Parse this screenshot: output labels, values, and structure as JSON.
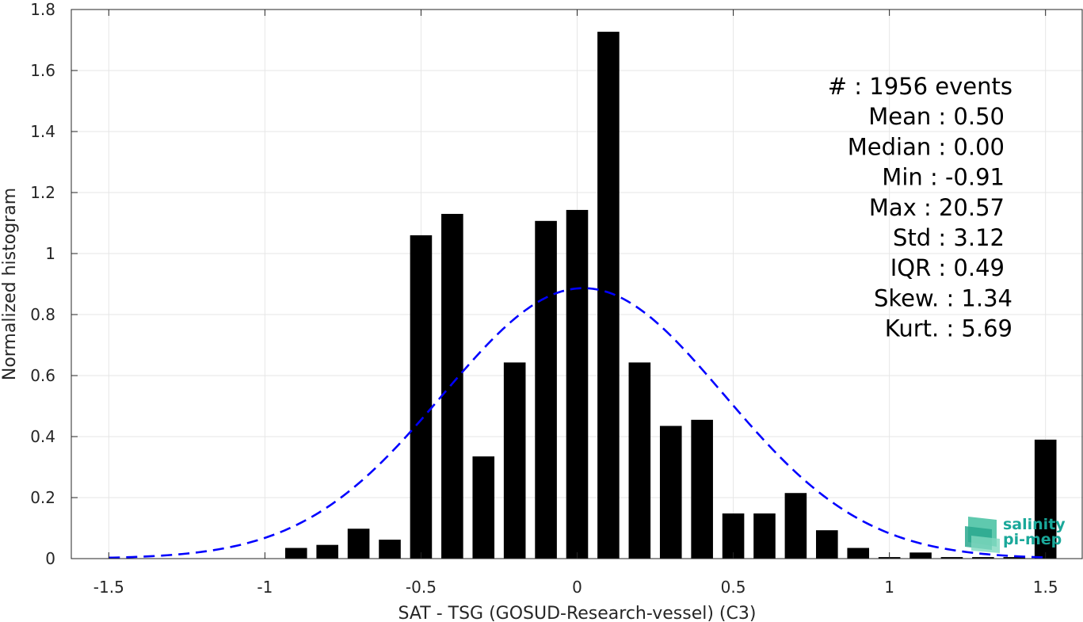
{
  "chart_data": {
    "type": "bar",
    "xlabel": "SAT - TSG (GOSUD-Research-vessel) (C3)",
    "ylabel": "Normalized histogram",
    "xlim": [
      -1.62,
      1.62
    ],
    "ylim": [
      0,
      1.8
    ],
    "xticks": [
      -1.5,
      -1,
      -0.5,
      0,
      0.5,
      1,
      1.5
    ],
    "xtick_labels": [
      "-1.5",
      "-1",
      "-0.5",
      "0",
      "0.5",
      "1",
      "1.5"
    ],
    "yticks": [
      0,
      0.2,
      0.4,
      0.6,
      0.8,
      1,
      1.2,
      1.4,
      1.6,
      1.8
    ],
    "ytick_labels": [
      "0",
      "0.2",
      "0.4",
      "0.6",
      "0.8",
      "1",
      "1.2",
      "1.4",
      "1.6",
      "1.8"
    ],
    "grid": true,
    "bar_width": 0.07,
    "bars": {
      "x": [
        -0.9,
        -0.8,
        -0.7,
        -0.6,
        -0.5,
        -0.4,
        -0.3,
        -0.2,
        -0.1,
        0.0,
        0.1,
        0.2,
        0.3,
        0.4,
        0.5,
        0.6,
        0.7,
        0.8,
        0.9,
        1.0,
        1.1,
        1.2,
        1.3,
        1.4,
        1.5
      ],
      "values": [
        0.035,
        0.045,
        0.098,
        0.062,
        1.06,
        1.13,
        0.335,
        0.643,
        1.107,
        1.143,
        1.727,
        0.643,
        0.435,
        0.455,
        0.148,
        0.148,
        0.215,
        0.093,
        0.035,
        0.005,
        0.02,
        0.005,
        0.005,
        0.005,
        0.39
      ],
      "color": "#000000"
    },
    "fit_curve": {
      "kind": "gaussian",
      "mean": 0.02,
      "std": 0.45,
      "x_range": [
        -1.5,
        1.5
      ],
      "color": "#0000ff",
      "style": "dashed"
    },
    "stats": [
      {
        "label": "#  : 1956 events"
      },
      {
        "label": "Mean : 0.50"
      },
      {
        "label": "Median : 0.00"
      },
      {
        "label": "Min : -0.91"
      },
      {
        "label": "Max : 20.57"
      },
      {
        "label": "Std : 3.12"
      },
      {
        "label": "IQR : 0.49"
      },
      {
        "label": "Skew. : 1.34"
      },
      {
        "label": "Kurt. : 5.69"
      }
    ]
  },
  "logo": {
    "line1": "salinity",
    "line2": "pi-mep",
    "color": "#1aa89a"
  }
}
